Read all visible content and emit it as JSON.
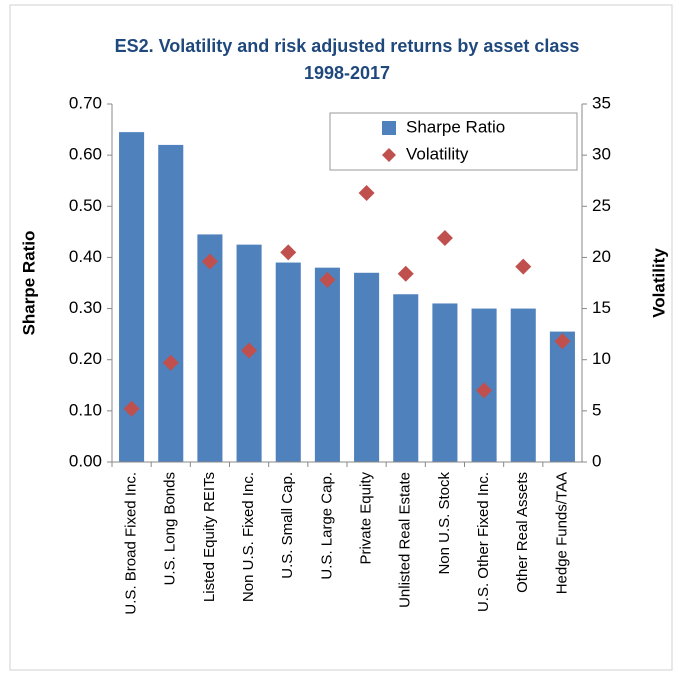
{
  "chart_data": {
    "type": "bar_scatter",
    "title": [
      "ES2. Volatility and risk adjusted returns by asset class",
      "1998-2017"
    ],
    "categories": [
      "U.S. Broad Fixed Inc.",
      "U.S. Long Bonds",
      "Listed Equity REITs",
      "Non U.S. Fixed Inc.",
      "U.S. Small Cap.",
      "U.S. Large Cap.",
      "Private Equity",
      "Unlisted Real Estate",
      "Non U.S. Stock",
      "U.S. Other Fixed Inc.",
      "Other Real Assets",
      "Hedge Funds/TAA"
    ],
    "series": [
      {
        "name": "Sharpe Ratio",
        "color": "#4f81bd",
        "kind": "bar",
        "values": [
          0.645,
          0.62,
          0.445,
          0.425,
          0.39,
          0.38,
          0.37,
          0.328,
          0.31,
          0.3,
          0.3,
          0.255
        ]
      },
      {
        "name": "Volatility",
        "color": "#c0504d",
        "kind": "marker",
        "axis": "y2",
        "values": [
          5.2,
          9.7,
          19.6,
          10.9,
          20.5,
          17.8,
          26.3,
          18.4,
          21.9,
          7.0,
          19.1,
          11.8
        ]
      }
    ],
    "ylabel": "Sharpe Ratio",
    "y2label": "Volatility",
    "ylim": [
      0,
      0.7
    ],
    "yticks": [
      {
        "value": 0,
        "label": "0.00"
      },
      {
        "value": 0.1,
        "label": "0.10"
      },
      {
        "value": 0.2,
        "label": "0.20"
      },
      {
        "value": 0.3,
        "label": "0.30"
      },
      {
        "value": 0.4,
        "label": "0.40"
      },
      {
        "value": 0.5,
        "label": "0.50"
      },
      {
        "value": 0.6,
        "label": "0.60"
      },
      {
        "value": 0.7,
        "label": "0.70"
      }
    ],
    "y2lim": [
      0,
      35
    ],
    "y2ticks": [
      0,
      5,
      10,
      15,
      20,
      25,
      30,
      35
    ],
    "legend": "top-right"
  }
}
